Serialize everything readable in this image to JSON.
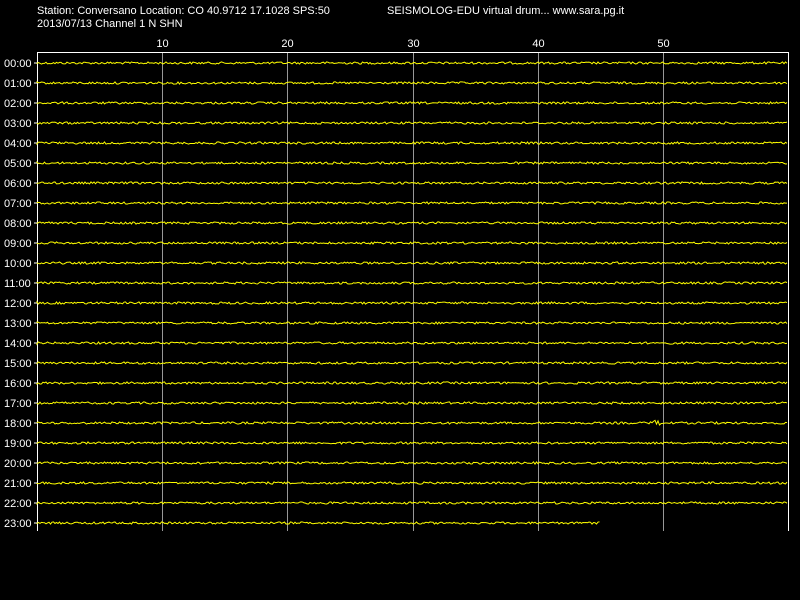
{
  "header": {
    "station_line": "Station: Conversano Location: CO 40.9712 17.1028 SPS:50",
    "date_channel_line": "2013/07/13  Channel 1 N SHN",
    "brand_line": "SEISMOLOG-EDU virtual drum... www.sara.pg.it"
  },
  "minute_ticks": [
    "10",
    "20",
    "30",
    "40",
    "50"
  ],
  "minute_tick_values": [
    10,
    20,
    30,
    40,
    50
  ],
  "minutes_per_row": 60,
  "hour_labels": [
    "00:00",
    "01:00",
    "02:00",
    "03:00",
    "04:00",
    "05:00",
    "06:00",
    "07:00",
    "08:00",
    "09:00",
    "10:00",
    "11:00",
    "12:00",
    "13:00",
    "14:00",
    "15:00",
    "16:00",
    "17:00",
    "18:00",
    "19:00",
    "20:00",
    "21:00",
    "22:00",
    "23:00"
  ],
  "last_row_end_minute": 45,
  "event": {
    "hour": "18:00",
    "minute": 49.5
  },
  "colors": {
    "background": "#000000",
    "trace": "#ffff00",
    "grid": "#ffffff",
    "text": "#ffffff"
  }
}
